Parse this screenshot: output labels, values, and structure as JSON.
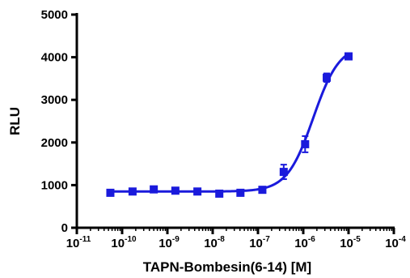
{
  "chart_data": {
    "type": "scatter",
    "title": "",
    "xlabel": "TAPN-Bombesin(6-14) [M]",
    "ylabel": "RLU",
    "x_scale": "log",
    "xlim": [
      1e-11,
      0.0001
    ],
    "ylim": [
      0,
      5000
    ],
    "x_ticks": [
      {
        "base": "10",
        "exp": "-11",
        "value": 1e-11
      },
      {
        "base": "10",
        "exp": "-10",
        "value": 1e-10
      },
      {
        "base": "10",
        "exp": "-9",
        "value": 1e-09
      },
      {
        "base": "10",
        "exp": "-8",
        "value": 1e-08
      },
      {
        "base": "10",
        "exp": "-7",
        "value": 1e-07
      },
      {
        "base": "10",
        "exp": "-6",
        "value": 1e-06
      },
      {
        "base": "10",
        "exp": "-5",
        "value": 1e-05
      },
      {
        "base": "10",
        "exp": "-4",
        "value": 0.0001
      }
    ],
    "y_ticks": [
      {
        "label": "0",
        "value": 0
      },
      {
        "label": "1000",
        "value": 1000
      },
      {
        "label": "2000",
        "value": 2000
      },
      {
        "label": "3000",
        "value": 3000
      },
      {
        "label": "4000",
        "value": 4000
      },
      {
        "label": "5000",
        "value": 5000
      }
    ],
    "grid": false,
    "legend": "none",
    "color": "#1a1adc",
    "series": [
      {
        "x": [
          5.5e-11,
          1.7e-10,
          5e-10,
          1.5e-09,
          4.6e-09,
          1.4e-08,
          4.1e-08,
          1.25e-07,
          3.7e-07,
          1.1e-06,
          3.3e-06,
          1e-05
        ],
        "y": [
          820,
          850,
          900,
          870,
          850,
          800,
          820,
          890,
          1310,
          1960,
          3520,
          4020
        ],
        "err": [
          40,
          40,
          45,
          40,
          35,
          40,
          40,
          40,
          170,
          190,
          100,
          70
        ]
      }
    ],
    "fit": {
      "type": "sigmoidal dose-response",
      "bottom": 850,
      "top": 4300,
      "log_ec50": -5.78,
      "hill_slope": 1.5,
      "x_range": [
        5.5e-11,
        1e-05
      ]
    }
  }
}
